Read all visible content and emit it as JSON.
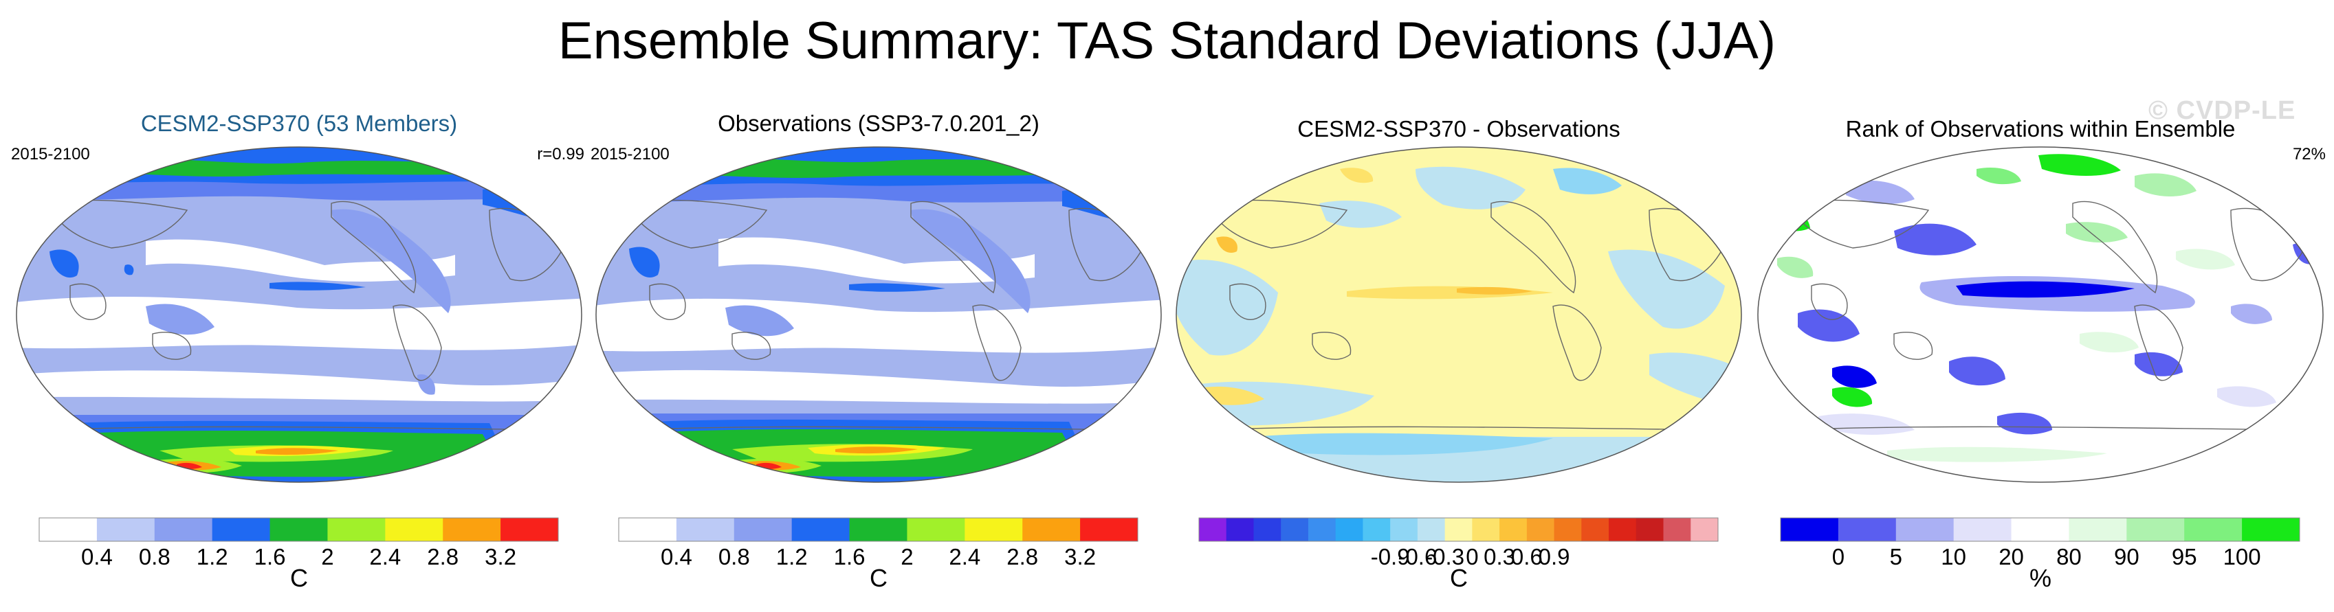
{
  "header": {
    "title": "Ensemble Summary: TAS Standard Deviations (JJA)"
  },
  "watermark": "© CVDP-LE",
  "panels": [
    {
      "title": "CESM2-SSP370 (53 Members)",
      "period": "2015-2100",
      "stat": "r=0.99",
      "colorbar": {
        "colors": [
          "#ffffff",
          "#bccaf6",
          "#8a9ff0",
          "#1f69f2",
          "#1bb82f",
          "#a1f02a",
          "#f6f31b",
          "#fba10f",
          "#f8211b"
        ],
        "ticks": [
          "0.4",
          "0.8",
          "1.2",
          "1.6",
          "2",
          "2.4",
          "2.8",
          "3.2"
        ],
        "units": "C"
      }
    },
    {
      "title": "Observations (SSP3-7.0.201_2)",
      "period": "2015-2100",
      "stat": "",
      "colorbar": {
        "colors": [
          "#ffffff",
          "#bccaf6",
          "#8a9ff0",
          "#1f69f2",
          "#1bb82f",
          "#a1f02a",
          "#f6f31b",
          "#fba10f",
          "#f8211b"
        ],
        "ticks": [
          "0.4",
          "0.8",
          "1.2",
          "1.6",
          "2",
          "2.4",
          "2.8",
          "3.2"
        ],
        "units": "C"
      }
    },
    {
      "title": "CESM2-SSP370 - Observations",
      "period": "",
      "stat": "",
      "colorbar": {
        "colors": [
          "#8a20e6",
          "#3a1ee0",
          "#2a3fe6",
          "#2f6ae8",
          "#3a8ef0",
          "#2aa8f5",
          "#4fc4f5",
          "#8fd6f5",
          "#bde3f2",
          "#fdf8a8",
          "#fde26a",
          "#fcc33a",
          "#f8a12a",
          "#f2791c",
          "#ea4f1a",
          "#dd2418",
          "#c81e1e",
          "#d8555f",
          "#f6b2b8"
        ],
        "ticks": [
          "-0.9",
          "-0.6",
          "-0.3",
          "0",
          "0.3",
          "0.6",
          "0.9"
        ],
        "units": "C"
      }
    },
    {
      "title": "Rank of Observations within Ensemble",
      "period": "",
      "stat": "72%",
      "colorbar": {
        "colors": [
          "#0000ee",
          "#5a5ef0",
          "#aab0f4",
          "#e2e2fa",
          "#ffffff",
          "#e2fae2",
          "#aef2ae",
          "#7ef07e",
          "#18e818"
        ],
        "ticks": [
          "0",
          "5",
          "10",
          "20",
          "80",
          "90",
          "95",
          "100"
        ],
        "units": "%"
      }
    }
  ]
}
